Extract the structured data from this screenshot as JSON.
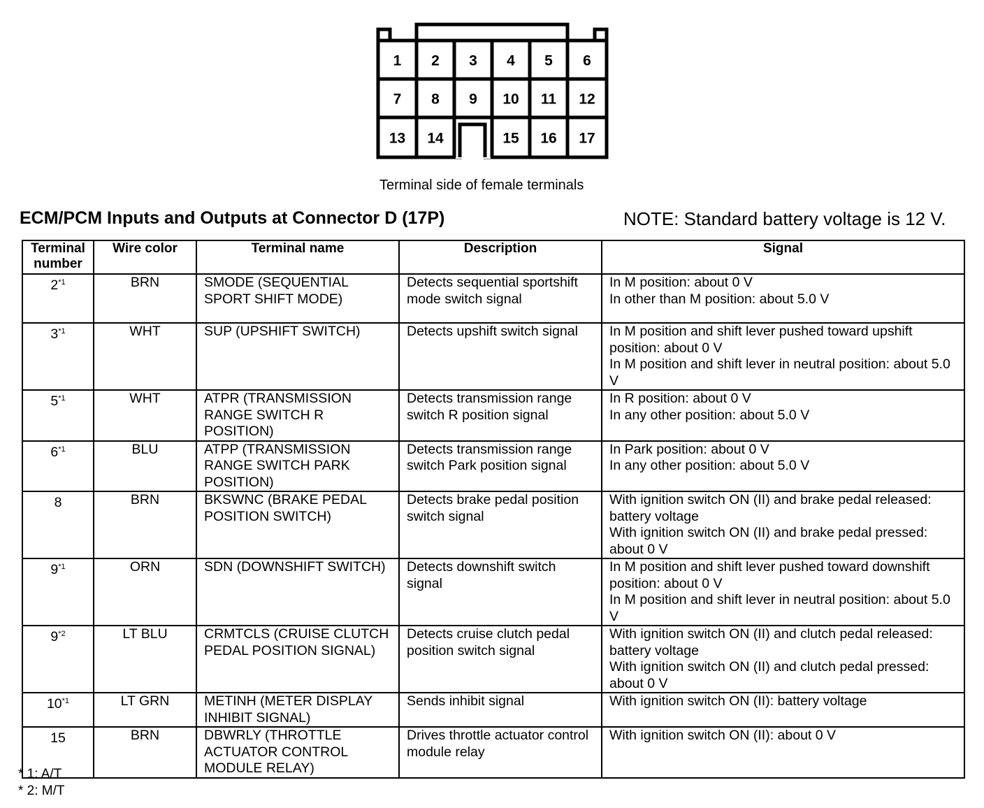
{
  "connector": {
    "terminals": [
      [
        "1",
        "2",
        "3",
        "4",
        "5",
        "6"
      ],
      [
        "7",
        "8",
        "9",
        "10",
        "11",
        "12"
      ],
      [
        "13",
        "14",
        "",
        "15",
        "16",
        "17"
      ]
    ],
    "caption": "Terminal side of female terminals"
  },
  "title": "ECM/PCM Inputs and Outputs at Connector D  (17P)",
  "note": "NOTE: Standard battery voltage is 12 V.",
  "table": {
    "headers": [
      "Terminal number",
      "Wire color",
      "Terminal name",
      "Description",
      "Signal"
    ],
    "rows": [
      {
        "terminal": "2",
        "mark": "*1",
        "wire": "BRN",
        "name": "SMODE (SEQUENTIAL SPORT SHIFT MODE)",
        "description": "Detects sequential sportshift mode switch signal",
        "signal": [
          "In M position: about 0 V",
          "In other than M position: about 5.0 V"
        ]
      },
      {
        "terminal": "3",
        "mark": "*1",
        "wire": "WHT",
        "name": "SUP (UPSHIFT SWITCH)",
        "description": "Detects upshift switch signal",
        "signal": [
          "In M position and shift lever pushed toward upshift position: about 0 V",
          "In M position and shift lever in neutral position: about 5.0 V"
        ]
      },
      {
        "terminal": "5",
        "mark": "*1",
        "wire": "WHT",
        "name": "ATPR (TRANSMISSION RANGE SWITCH R POSITION)",
        "description": "Detects transmission range switch R position signal",
        "signal": [
          "In R position: about 0 V",
          "In any other position: about 5.0 V"
        ]
      },
      {
        "terminal": "6",
        "mark": "*1",
        "wire": "BLU",
        "name": "ATPP (TRANSMISSION RANGE SWITCH PARK POSITION)",
        "description": "Detects transmission range switch Park position signal",
        "signal": [
          "In Park position: about 0 V",
          "In any other position: about 5.0 V"
        ]
      },
      {
        "terminal": "8",
        "mark": "",
        "wire": "BRN",
        "name": "BKSWNC (BRAKE PEDAL POSITION SWITCH)",
        "description": "Detects brake pedal position switch signal",
        "signal": [
          "With ignition switch ON (II) and brake pedal released: battery voltage",
          "With ignition switch ON (II) and brake pedal pressed: about 0 V"
        ]
      },
      {
        "terminal": "9",
        "mark": "*1",
        "wire": "ORN",
        "name": "SDN (DOWNSHIFT SWITCH)",
        "description": "Detects downshift switch signal",
        "signal": [
          "In M position and shift lever pushed toward downshift position: about 0 V",
          "In M position and shift lever in neutral position: about 5.0 V"
        ]
      },
      {
        "terminal": "9",
        "mark": "*2",
        "wire": "LT BLU",
        "name": "CRMTCLS (CRUISE CLUTCH PEDAL POSITION SIGNAL)",
        "description": "Detects cruise clutch pedal position switch signal",
        "signal": [
          "With ignition switch ON (II) and clutch pedal released: battery voltage",
          "With ignition switch ON (II) and clutch pedal pressed: about 0 V"
        ]
      },
      {
        "terminal": "10",
        "mark": "*1",
        "wire": "LT GRN",
        "name": "METINH (METER DISPLAY INHIBIT SIGNAL)",
        "description": "Sends inhibit signal",
        "signal": [
          "With ignition switch ON (II): battery voltage"
        ]
      },
      {
        "terminal": "15",
        "mark": "",
        "wire": "BRN",
        "name": "DBWRLY (THROTTLE ACTUATOR CONTROL MODULE RELAY)",
        "description": "Drives throttle actuator control module relay",
        "signal": [
          "With ignition switch ON (II): about 0 V"
        ]
      }
    ]
  },
  "footnotes": [
    "* 1: A/T",
    "* 2: M/T"
  ]
}
